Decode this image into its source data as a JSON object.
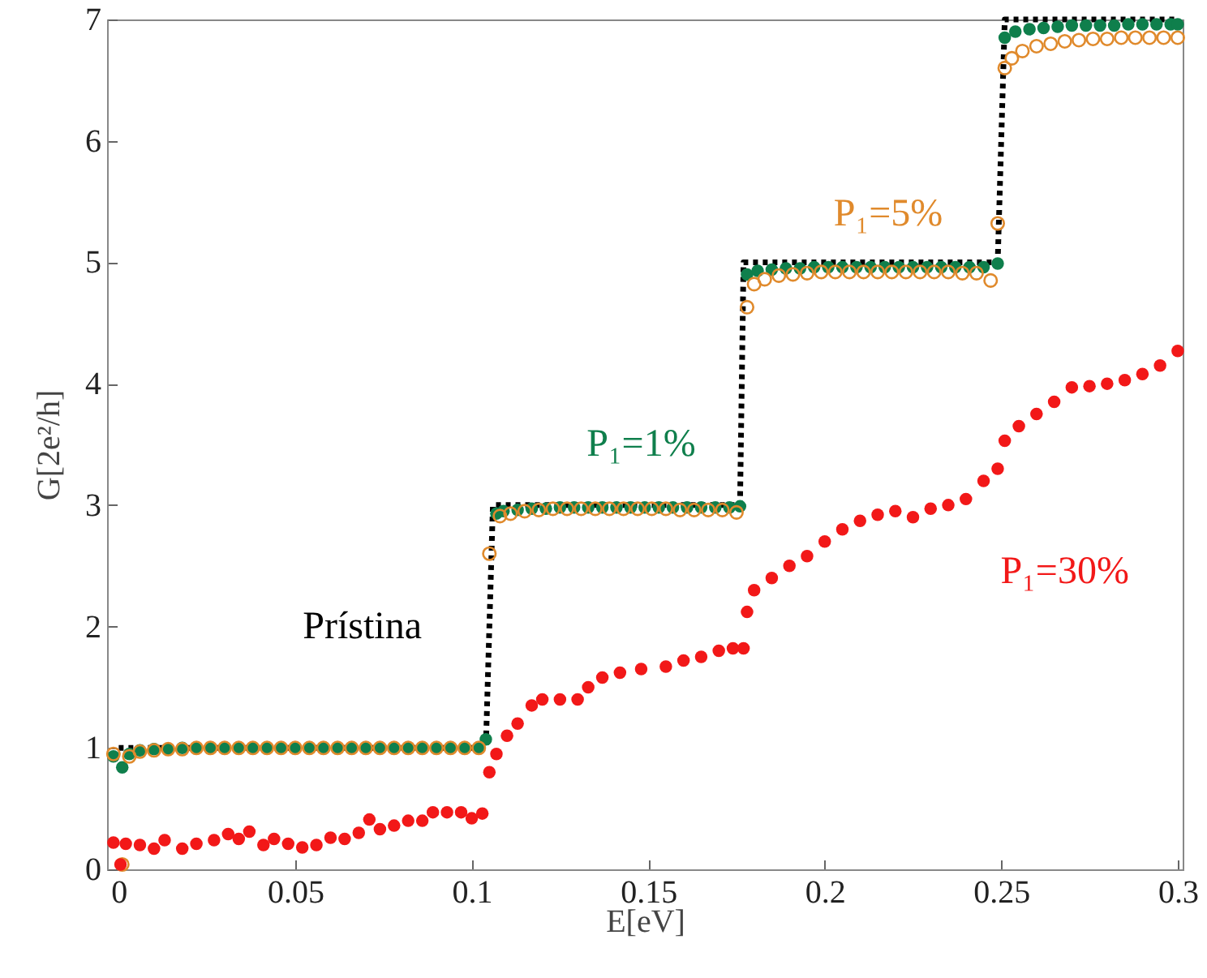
{
  "chart_data": {
    "type": "scatter",
    "xlabel": "E[eV]",
    "ylabel": "G[2e²/h]",
    "xlim": [
      -0.0033,
      0.3014
    ],
    "ylim": [
      0,
      7
    ],
    "xticks": [
      0,
      0.05,
      0.1,
      0.15,
      0.2,
      0.25,
      0.3
    ],
    "yticks": [
      0,
      1,
      2,
      3,
      4,
      5,
      6,
      7
    ],
    "grid": false,
    "series": [
      {
        "name": "Prístina",
        "type": "line",
        "color": "#000000",
        "line_style": "dotted",
        "marker": "none",
        "x": [
          0,
          0.104,
          0.106,
          0.176,
          0.177,
          0.249,
          0.251,
          0.3
        ],
        "values": [
          1,
          1,
          3,
          3,
          5,
          5,
          7,
          7
        ]
      },
      {
        "name": "P₁=1%",
        "color": "#0f7f4c",
        "marker": "circle",
        "x": [
          -0.0015,
          0.001,
          0.003,
          0.006,
          0.01,
          0.014,
          0.018,
          0.022,
          0.026,
          0.03,
          0.034,
          0.038,
          0.042,
          0.046,
          0.05,
          0.054,
          0.058,
          0.062,
          0.066,
          0.07,
          0.074,
          0.078,
          0.082,
          0.086,
          0.09,
          0.094,
          0.098,
          0.102,
          0.104,
          0.107,
          0.109,
          0.113,
          0.117,
          0.121,
          0.125,
          0.129,
          0.133,
          0.137,
          0.141,
          0.145,
          0.149,
          0.153,
          0.157,
          0.161,
          0.165,
          0.169,
          0.173,
          0.176,
          0.178,
          0.181,
          0.185,
          0.189,
          0.193,
          0.197,
          0.201,
          0.205,
          0.209,
          0.213,
          0.217,
          0.221,
          0.225,
          0.229,
          0.233,
          0.237,
          0.241,
          0.245,
          0.249,
          0.251,
          0.254,
          0.258,
          0.262,
          0.266,
          0.27,
          0.274,
          0.278,
          0.282,
          0.286,
          0.29,
          0.294,
          0.298,
          0.3
        ],
        "values": [
          0.93,
          0.84,
          0.95,
          0.98,
          0.99,
          0.99,
          1.0,
          1.0,
          1.0,
          1.0,
          1.0,
          1.0,
          1.0,
          1.0,
          1.0,
          1.0,
          1.0,
          1.0,
          1.0,
          1.0,
          1.0,
          1.0,
          1.0,
          1.0,
          1.0,
          1.0,
          1.0,
          1.0,
          1.07,
          2.93,
          2.95,
          2.96,
          2.97,
          2.97,
          2.98,
          2.98,
          2.98,
          2.98,
          2.98,
          2.98,
          2.98,
          2.98,
          2.98,
          2.98,
          2.98,
          2.98,
          2.98,
          2.99,
          4.9,
          4.93,
          4.94,
          4.95,
          4.95,
          4.96,
          4.96,
          4.96,
          4.96,
          4.96,
          4.96,
          4.96,
          4.96,
          4.96,
          4.96,
          4.96,
          4.96,
          4.96,
          4.99,
          6.85,
          6.9,
          6.92,
          6.93,
          6.94,
          6.95,
          6.95,
          6.95,
          6.95,
          6.96,
          6.96,
          6.96,
          6.96,
          6.96
        ]
      },
      {
        "name": "P₁=5%",
        "color": "#e08a2c",
        "marker": "circle",
        "x": [
          -0.0015,
          0.001,
          0.003,
          0.006,
          0.01,
          0.014,
          0.018,
          0.022,
          0.026,
          0.03,
          0.034,
          0.038,
          0.042,
          0.046,
          0.05,
          0.054,
          0.058,
          0.062,
          0.066,
          0.07,
          0.074,
          0.078,
          0.082,
          0.086,
          0.09,
          0.094,
          0.098,
          0.102,
          0.105,
          0.108,
          0.111,
          0.115,
          0.119,
          0.123,
          0.127,
          0.131,
          0.135,
          0.139,
          0.143,
          0.147,
          0.151,
          0.155,
          0.159,
          0.163,
          0.167,
          0.171,
          0.175,
          0.178,
          0.18,
          0.183,
          0.187,
          0.191,
          0.195,
          0.199,
          0.203,
          0.207,
          0.211,
          0.215,
          0.219,
          0.223,
          0.227,
          0.231,
          0.235,
          0.239,
          0.243,
          0.247,
          0.249,
          0.251,
          0.253,
          0.256,
          0.26,
          0.264,
          0.268,
          0.272,
          0.276,
          0.28,
          0.284,
          0.288,
          0.292,
          0.296,
          0.3
        ],
        "values": [
          0.95,
          0.04,
          0.93,
          0.97,
          0.98,
          0.99,
          0.99,
          1.0,
          1.0,
          1.0,
          1.0,
          1.0,
          1.0,
          1.0,
          1.0,
          1.0,
          1.0,
          1.0,
          1.0,
          1.0,
          1.0,
          1.0,
          1.0,
          1.0,
          1.0,
          1.0,
          1.0,
          1.0,
          2.6,
          2.91,
          2.93,
          2.95,
          2.96,
          2.97,
          2.97,
          2.97,
          2.97,
          2.97,
          2.97,
          2.97,
          2.97,
          2.97,
          2.96,
          2.96,
          2.96,
          2.96,
          2.94,
          4.63,
          4.82,
          4.86,
          4.89,
          4.9,
          4.91,
          4.92,
          4.92,
          4.92,
          4.92,
          4.92,
          4.92,
          4.92,
          4.92,
          4.92,
          4.92,
          4.91,
          4.91,
          4.85,
          5.32,
          6.6,
          6.68,
          6.74,
          6.78,
          6.8,
          6.82,
          6.83,
          6.84,
          6.84,
          6.85,
          6.85,
          6.85,
          6.85,
          6.85
        ]
      },
      {
        "name": "P₁=30%",
        "color": "#f21818",
        "marker": "circle",
        "x": [
          -0.0015,
          0.0005,
          0.002,
          0.006,
          0.01,
          0.013,
          0.018,
          0.022,
          0.027,
          0.031,
          0.034,
          0.037,
          0.041,
          0.044,
          0.048,
          0.052,
          0.056,
          0.06,
          0.064,
          0.068,
          0.071,
          0.074,
          0.078,
          0.082,
          0.086,
          0.089,
          0.093,
          0.097,
          0.1,
          0.103,
          0.105,
          0.107,
          0.11,
          0.113,
          0.117,
          0.12,
          0.125,
          0.13,
          0.133,
          0.137,
          0.142,
          0.148,
          0.155,
          0.16,
          0.165,
          0.17,
          0.174,
          0.177,
          0.178,
          0.18,
          0.185,
          0.19,
          0.195,
          0.2,
          0.205,
          0.21,
          0.215,
          0.22,
          0.225,
          0.23,
          0.235,
          0.24,
          0.245,
          0.249,
          0.251,
          0.255,
          0.26,
          0.265,
          0.27,
          0.275,
          0.28,
          0.285,
          0.29,
          0.295,
          0.3
        ],
        "values": [
          0.22,
          0.04,
          0.21,
          0.2,
          0.17,
          0.24,
          0.17,
          0.21,
          0.24,
          0.29,
          0.25,
          0.31,
          0.2,
          0.25,
          0.21,
          0.18,
          0.2,
          0.26,
          0.25,
          0.3,
          0.41,
          0.33,
          0.36,
          0.4,
          0.4,
          0.47,
          0.47,
          0.47,
          0.42,
          0.46,
          0.8,
          0.95,
          1.1,
          1.2,
          1.35,
          1.4,
          1.4,
          1.4,
          1.5,
          1.58,
          1.62,
          1.65,
          1.67,
          1.72,
          1.75,
          1.8,
          1.82,
          1.82,
          2.12,
          2.3,
          2.4,
          2.5,
          2.58,
          2.7,
          2.8,
          2.87,
          2.92,
          2.95,
          2.9,
          2.97,
          3.0,
          3.05,
          3.2,
          3.3,
          3.53,
          3.65,
          3.75,
          3.85,
          3.97,
          3.98,
          4.0,
          4.03,
          4.08,
          4.15,
          4.27
        ]
      }
    ]
  }
}
